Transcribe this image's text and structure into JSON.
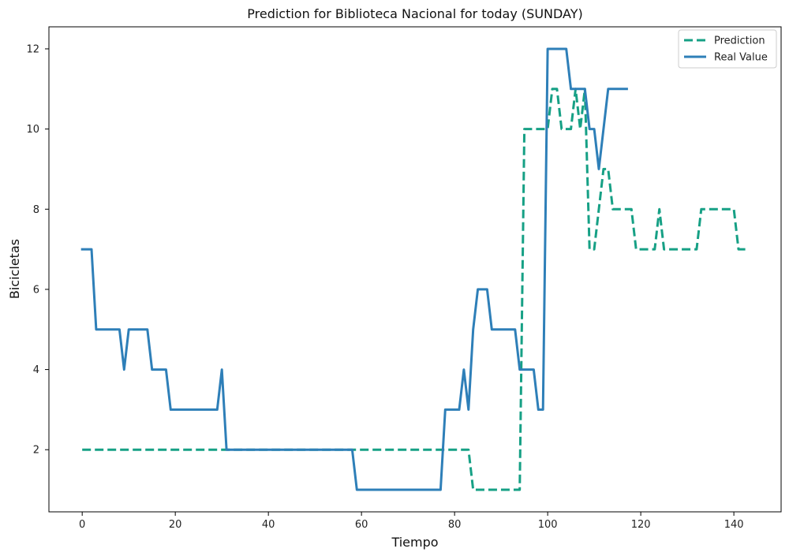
{
  "chart_data": {
    "type": "line",
    "title": "Prediction for Biblioteca Nacional for today (SUNDAY)",
    "xlabel": "Tiempo",
    "ylabel": "Bicicletas",
    "xlim": [
      -7.15,
      150.15
    ],
    "ylim": [
      0.45,
      12.55
    ],
    "xticks": [
      0,
      20,
      40,
      60,
      80,
      100,
      120,
      140
    ],
    "yticks": [
      2,
      4,
      6,
      8,
      10,
      12
    ],
    "grid": false,
    "legend_position": "top-right",
    "series": [
      {
        "name": "Prediction",
        "color": "#16a085",
        "style": "dashed",
        "points": [
          [
            0,
            2
          ],
          [
            83,
            2
          ],
          [
            84,
            1
          ],
          [
            94,
            1
          ],
          [
            95,
            10
          ],
          [
            100,
            10
          ],
          [
            101,
            11
          ],
          [
            102,
            11
          ],
          [
            103,
            10
          ],
          [
            105,
            10
          ],
          [
            106,
            11
          ],
          [
            107,
            10
          ],
          [
            108,
            11
          ],
          [
            109,
            7
          ],
          [
            110,
            7
          ],
          [
            112,
            9
          ],
          [
            113,
            9
          ],
          [
            114,
            8
          ],
          [
            117,
            8
          ],
          [
            118,
            8
          ],
          [
            119,
            7
          ],
          [
            123,
            7
          ],
          [
            124,
            8
          ],
          [
            125,
            7
          ],
          [
            132,
            7
          ],
          [
            133,
            8
          ],
          [
            140,
            8
          ],
          [
            141,
            7
          ],
          [
            143,
            7
          ]
        ]
      },
      {
        "name": "Real Value",
        "color": "#2e7fb8",
        "style": "solid",
        "points": [
          [
            0,
            7
          ],
          [
            2,
            7
          ],
          [
            3,
            5
          ],
          [
            8,
            5
          ],
          [
            9,
            4
          ],
          [
            10,
            5
          ],
          [
            14,
            5
          ],
          [
            15,
            4
          ],
          [
            18,
            4
          ],
          [
            19,
            3
          ],
          [
            29,
            3
          ],
          [
            30,
            4
          ],
          [
            31,
            2
          ],
          [
            58,
            2
          ],
          [
            59,
            1
          ],
          [
            77,
            1
          ],
          [
            78,
            3
          ],
          [
            81,
            3
          ],
          [
            82,
            4
          ],
          [
            83,
            3
          ],
          [
            84,
            5
          ],
          [
            85,
            6
          ],
          [
            87,
            6
          ],
          [
            88,
            5
          ],
          [
            93,
            5
          ],
          [
            94,
            4
          ],
          [
            97,
            4
          ],
          [
            98,
            3
          ],
          [
            99,
            3
          ],
          [
            100,
            12
          ],
          [
            104,
            12
          ],
          [
            105,
            11
          ],
          [
            108,
            11
          ],
          [
            109,
            10
          ],
          [
            110,
            10
          ],
          [
            111,
            9
          ],
          [
            112,
            10
          ],
          [
            113,
            11
          ],
          [
            117,
            11
          ]
        ]
      }
    ]
  }
}
